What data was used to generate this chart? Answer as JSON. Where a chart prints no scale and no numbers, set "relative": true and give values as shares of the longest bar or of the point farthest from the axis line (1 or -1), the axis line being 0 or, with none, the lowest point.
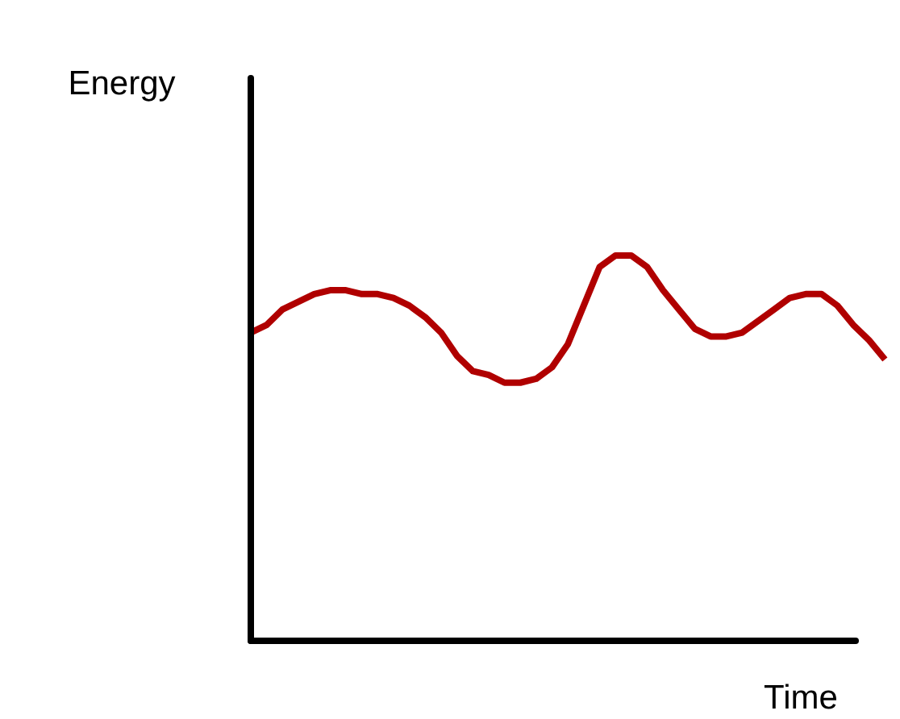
{
  "chart_data": {
    "type": "line",
    "relative": true,
    "xlabel": "Time",
    "ylabel": "Energy",
    "categories": [
      null,
      null,
      null,
      null,
      null,
      null,
      null,
      null,
      null,
      null,
      null,
      null,
      null,
      null,
      null,
      null,
      null,
      null,
      null,
      null,
      null,
      null,
      null,
      null,
      null,
      null,
      null,
      null,
      null,
      null,
      null,
      null,
      null,
      null,
      null,
      null,
      null,
      null,
      null,
      null,
      null
    ],
    "series": [
      {
        "color": "#b00000",
        "values": [
          0.8,
          0.82,
          0.86,
          0.88,
          0.9,
          0.91,
          0.91,
          0.9,
          0.9,
          0.89,
          0.87,
          0.84,
          0.8,
          0.74,
          0.7,
          0.69,
          0.67,
          0.67,
          0.68,
          0.71,
          0.77,
          0.87,
          0.97,
          1.0,
          1.0,
          0.97,
          0.91,
          0.86,
          0.81,
          0.79,
          0.79,
          0.8,
          0.83,
          0.86,
          0.89,
          0.9,
          0.9,
          0.87,
          0.82,
          0.78,
          0.73
        ]
      }
    ],
    "grid": false,
    "marker": "none",
    "line_style": "solid"
  }
}
